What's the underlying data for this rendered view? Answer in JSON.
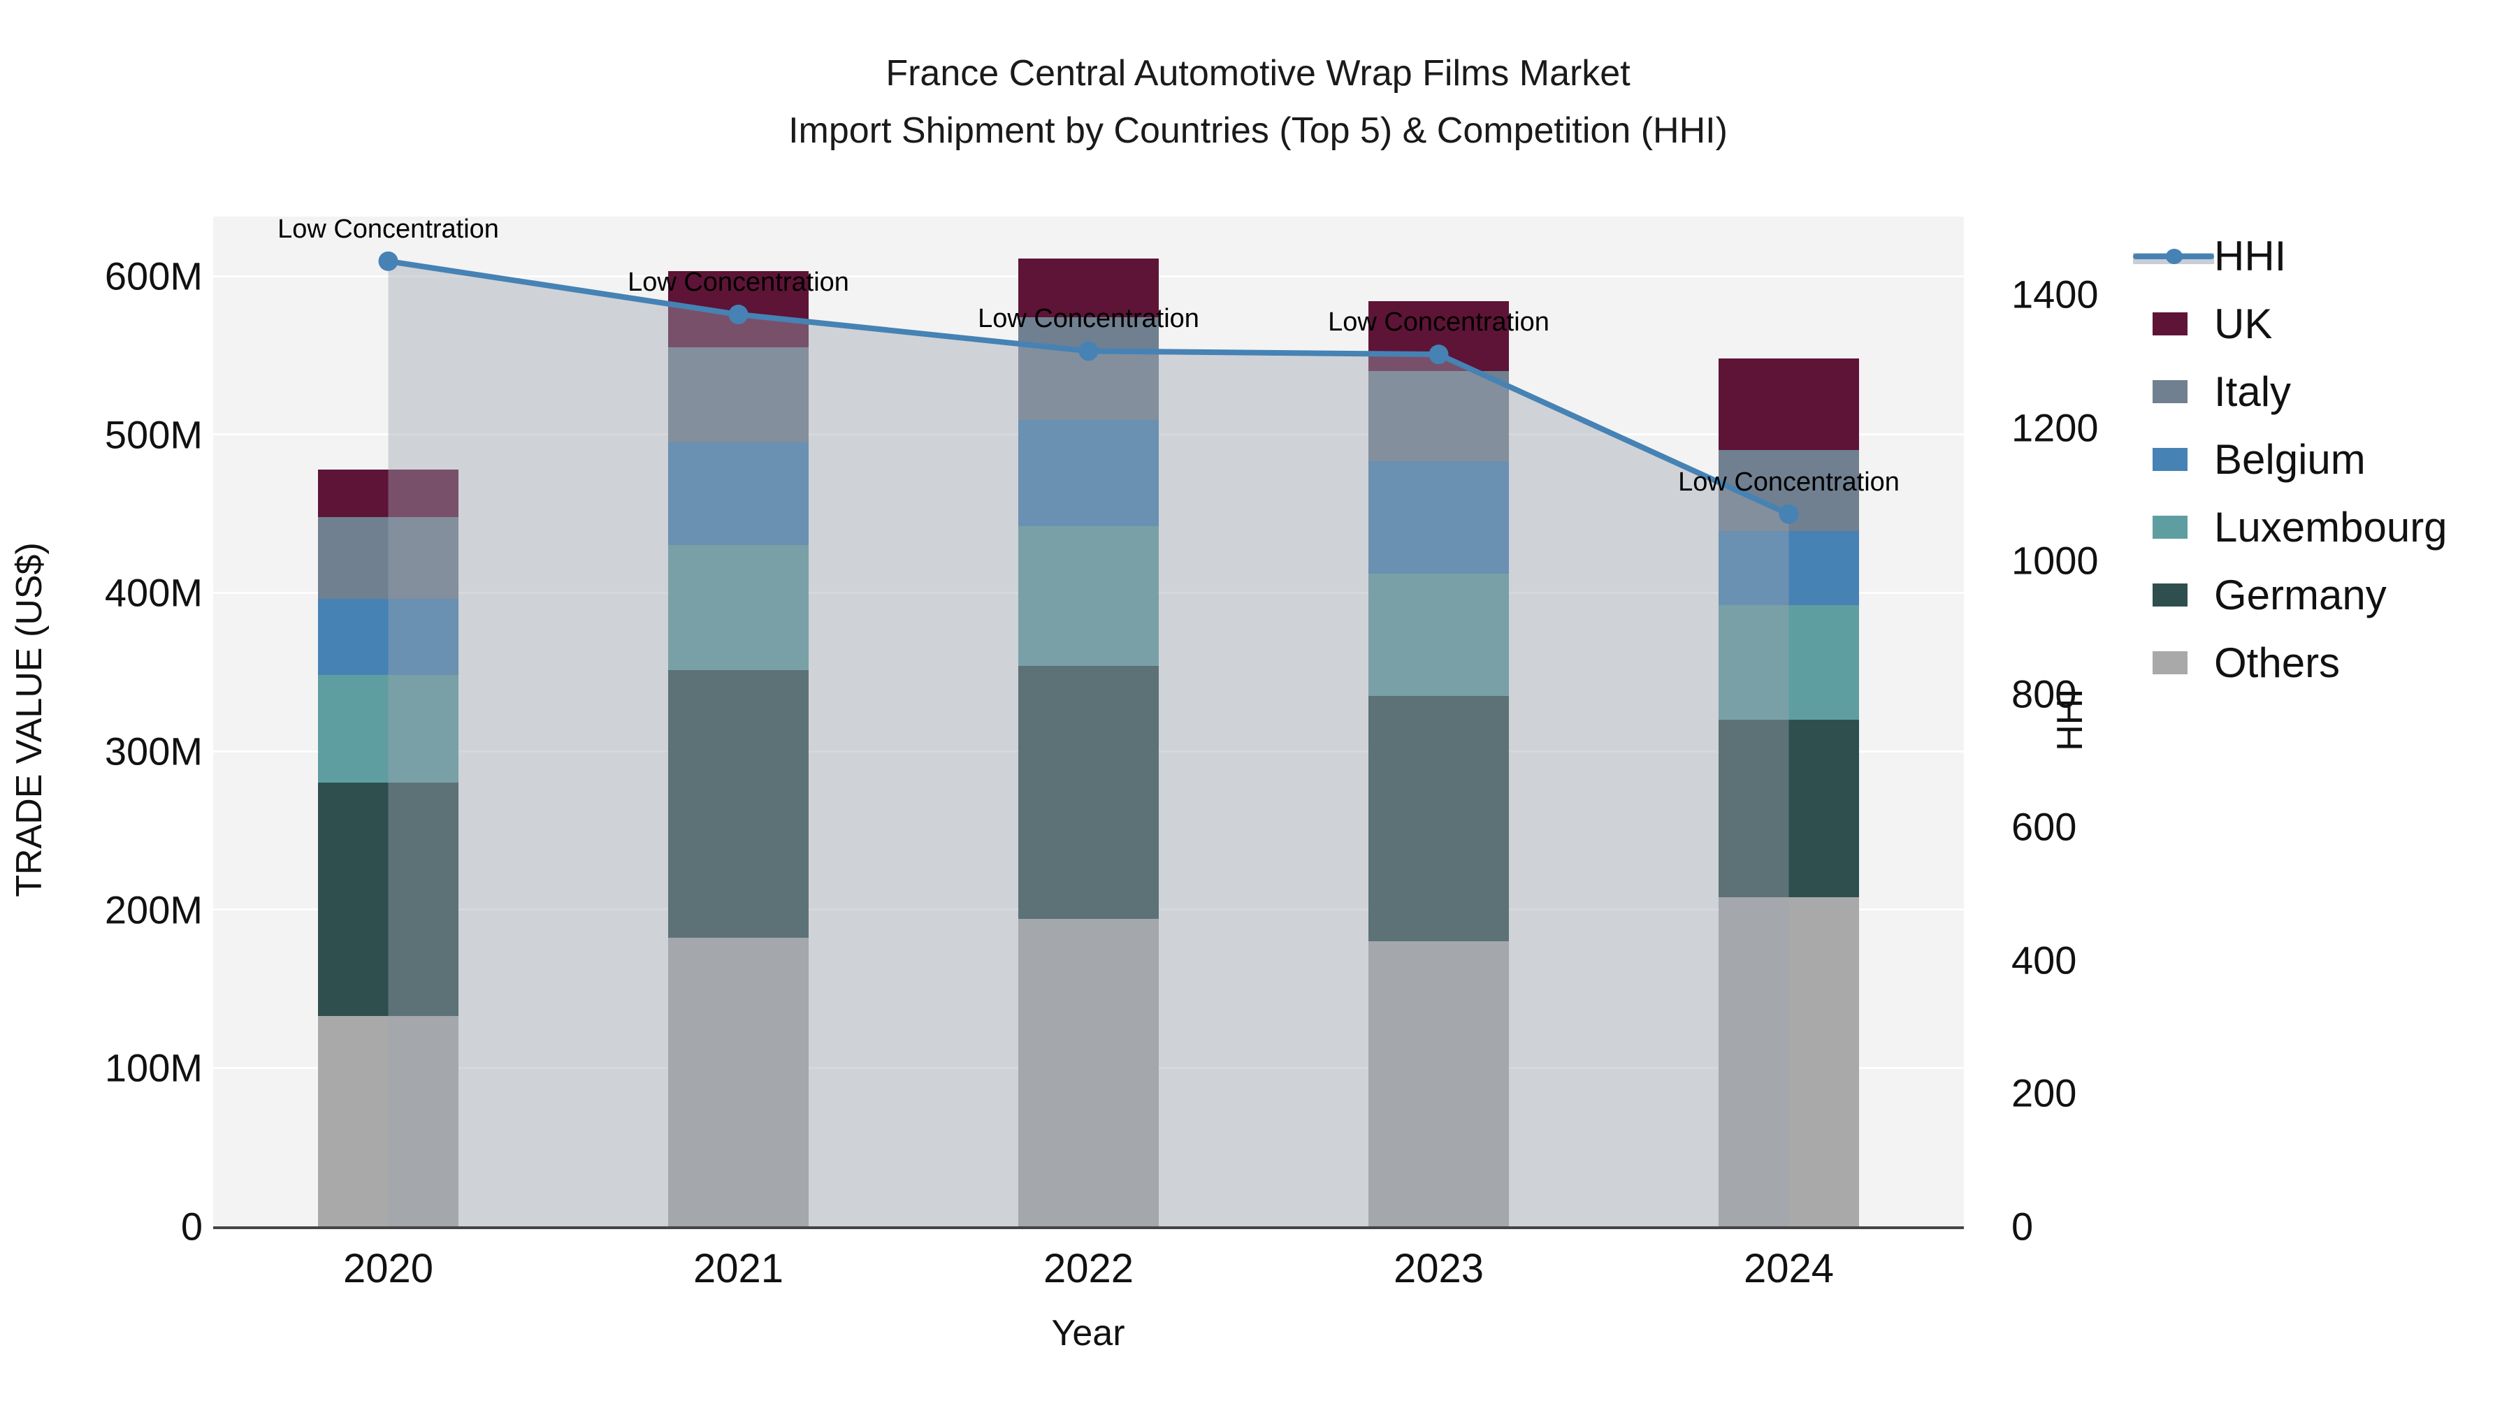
{
  "title": {
    "line1": "France Central Automotive Wrap Films Market",
    "line2": "Import Shipment by Countries (Top 5) & Competition (HHI)"
  },
  "axes": {
    "y_left": {
      "title": "TRADE VALUE (US$)",
      "ticks": [
        {
          "value": 0,
          "label": "0"
        },
        {
          "value": 100,
          "label": "100M"
        },
        {
          "value": 200,
          "label": "200M"
        },
        {
          "value": 300,
          "label": "300M"
        },
        {
          "value": 400,
          "label": "400M"
        },
        {
          "value": 500,
          "label": "500M"
        },
        {
          "value": 600,
          "label": "600M"
        }
      ],
      "range": [
        0,
        637.5
      ]
    },
    "y_right": {
      "title": "HHI",
      "ticks": [
        {
          "value": 0,
          "label": "0"
        },
        {
          "value": 200,
          "label": "200"
        },
        {
          "value": 400,
          "label": "400"
        },
        {
          "value": 600,
          "label": "600"
        },
        {
          "value": 800,
          "label": "800"
        },
        {
          "value": 1000,
          "label": "1000"
        },
        {
          "value": 1200,
          "label": "1200"
        },
        {
          "value": 1400,
          "label": "1400"
        }
      ],
      "range": [
        0,
        1517
      ]
    },
    "x": {
      "title": "Year"
    }
  },
  "chart_data": {
    "type": "bar",
    "subtype": "stacked-bar-with-line",
    "categories": [
      "2020",
      "2021",
      "2022",
      "2023",
      "2024"
    ],
    "bar_value_units": "millions US$",
    "series": [
      {
        "name": "Others",
        "color": "#a9a9a9",
        "values": [
          133,
          182,
          194,
          180,
          208
        ]
      },
      {
        "name": "Germany",
        "color": "#2f4f4f",
        "values": [
          147,
          169,
          160,
          155,
          112
        ]
      },
      {
        "name": "Luxembourg",
        "color": "#5f9ea0",
        "values": [
          68,
          79,
          88,
          77,
          72
        ]
      },
      {
        "name": "Belgium",
        "color": "#4682b4",
        "values": [
          48,
          65,
          67,
          71,
          47
        ]
      },
      {
        "name": "Italy",
        "color": "#708090",
        "values": [
          52,
          60,
          65,
          57,
          51
        ]
      },
      {
        "name": "UK",
        "color": "#5e1437",
        "values": [
          30,
          48,
          37,
          44,
          58
        ]
      }
    ],
    "stack_totals": [
      478,
      603,
      611,
      584,
      548
    ],
    "line_series": {
      "name": "HHI",
      "axis": "right",
      "color": "#4682b4",
      "fill_to_zero_color": "rgba(158,164,176,0.42)",
      "values": [
        1450,
        1370,
        1315,
        1310,
        1070
      ]
    },
    "point_annotations": [
      "Low Concentration",
      "Low Concentration",
      "Low Concentration",
      "Low Concentration",
      "Low Concentration"
    ],
    "legend_position": "right",
    "grid": "horizontal-100M"
  },
  "legend": {
    "items": [
      {
        "label": "HHI",
        "type": "line",
        "color": "#4682b4"
      },
      {
        "label": "UK",
        "type": "box",
        "color": "#5e1437"
      },
      {
        "label": "Italy",
        "type": "box",
        "color": "#708090"
      },
      {
        "label": "Belgium",
        "type": "box",
        "color": "#4682b4"
      },
      {
        "label": "Luxembourg",
        "type": "box",
        "color": "#5f9ea0"
      },
      {
        "label": "Germany",
        "type": "box",
        "color": "#2f4f4f"
      },
      {
        "label": "Others",
        "type": "box",
        "color": "#a9a9a9"
      }
    ]
  },
  "style": {
    "plot_bg": "#f3f3f3",
    "line_width": 8,
    "marker_radius": 14
  }
}
